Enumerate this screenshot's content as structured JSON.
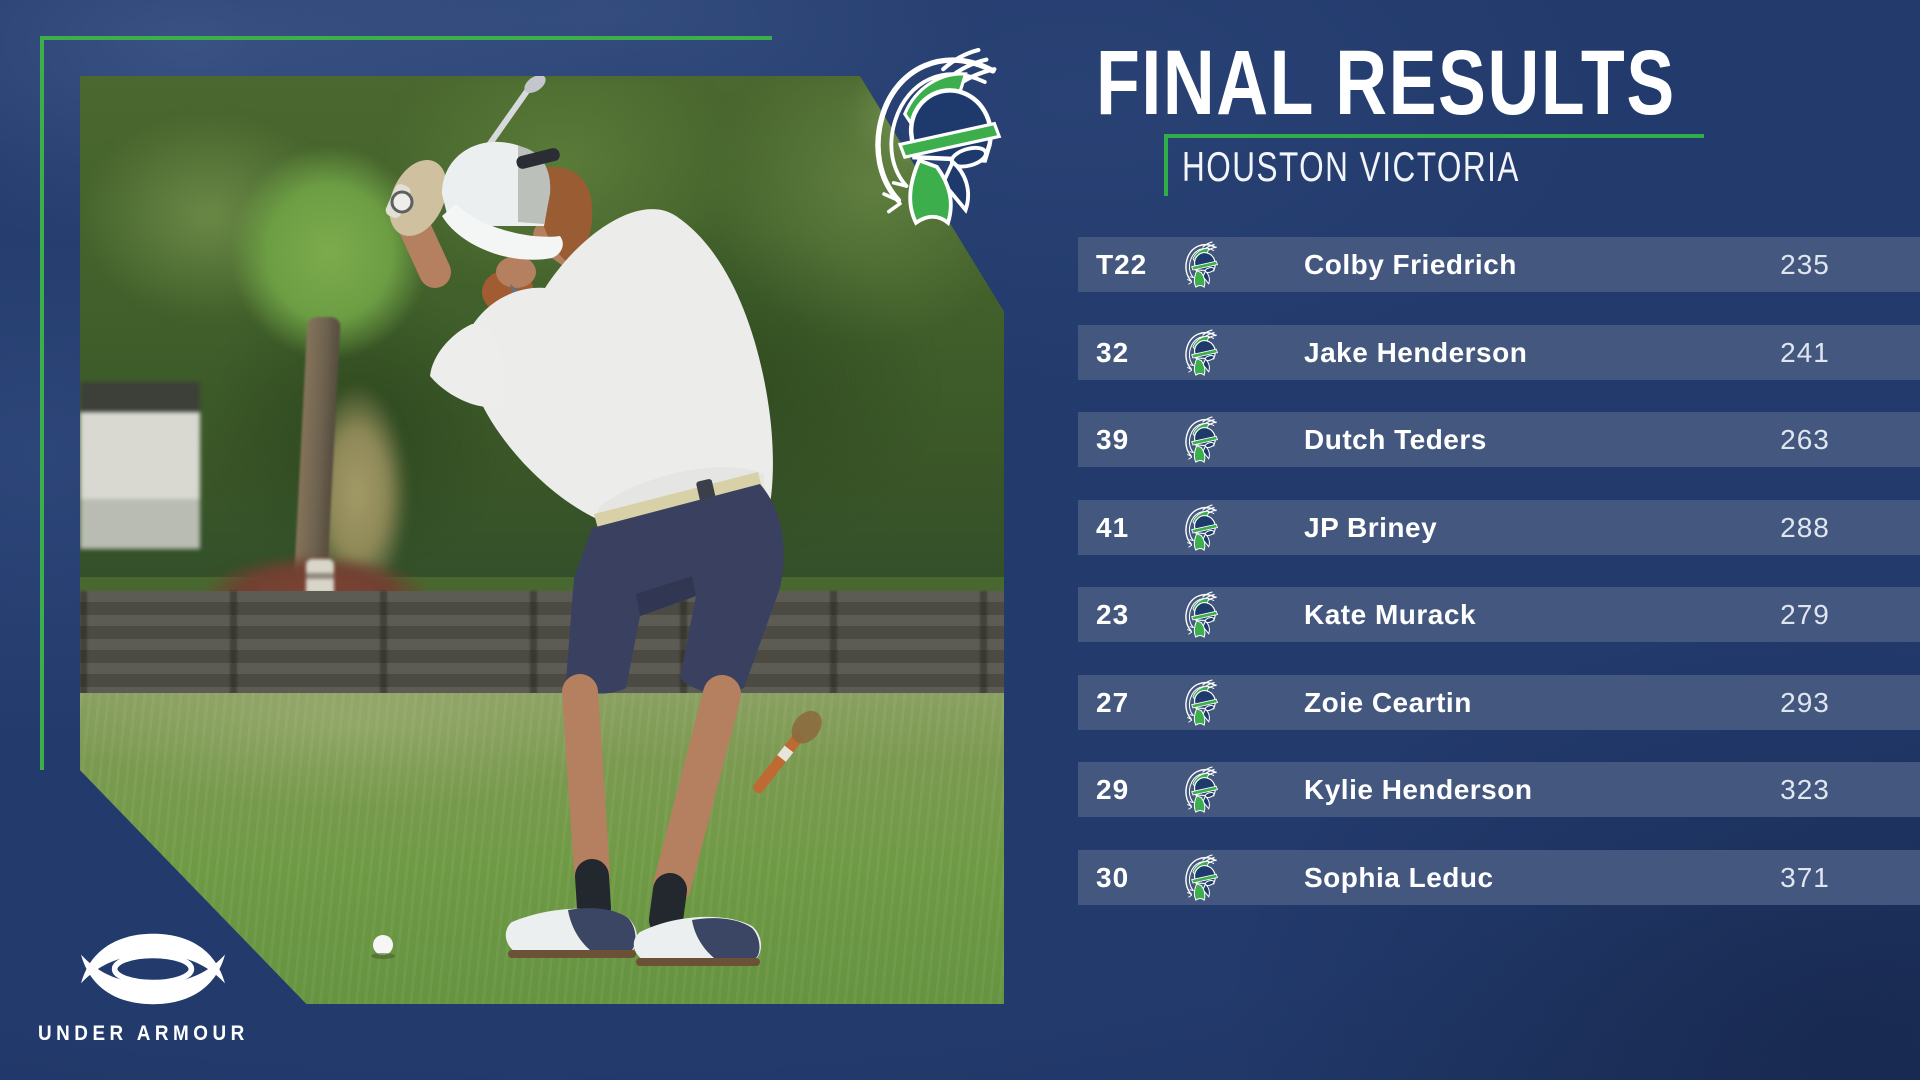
{
  "header": {
    "title": "FINAL RESULTS",
    "subtitle": "HOUSTON VICTORIA"
  },
  "results": [
    {
      "rank": "T22",
      "name": "Colby Friedrich",
      "score": "235"
    },
    {
      "rank": "32",
      "name": "Jake Henderson",
      "score": "241"
    },
    {
      "rank": "39",
      "name": "Dutch Teders",
      "score": "263"
    },
    {
      "rank": "41",
      "name": "JP Briney",
      "score": "288"
    },
    {
      "rank": "23",
      "name": "Kate Murack",
      "score": "279"
    },
    {
      "rank": "27",
      "name": "Zoie Ceartin",
      "score": "293"
    },
    {
      "rank": "29",
      "name": "Kylie Henderson",
      "score": "323"
    },
    {
      "rank": "30",
      "name": "Sophia Leduc",
      "score": "371"
    }
  ],
  "branding": {
    "sponsor": "UNDER ARMOUR"
  },
  "icons": {
    "team_logo": "spartan-helmet-icon",
    "sponsor_logo": "under-armour-icon"
  },
  "colors": {
    "background": "#223A6C",
    "row_bar": "#44587F",
    "accent_green": "#3CAE4C",
    "title_text": "#FFFFFF",
    "score_text": "#DFE6F0",
    "logo_navy": "#1E3A6C"
  }
}
